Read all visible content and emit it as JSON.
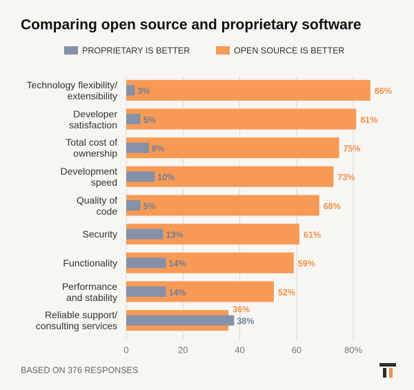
{
  "chart_data": {
    "type": "hbar",
    "title": "Comparing open source and proprietary software",
    "categories": [
      "Technology flexibility/\nextensibility",
      "Developer\nsatisfaction",
      "Total cost of\nownership",
      "Development\nspeed",
      "Quality of\ncode",
      "Security",
      "Functionality",
      "Performance\nand stability",
      "Reliable support/\nconsulting services"
    ],
    "series": [
      {
        "name": "PROPRIETARY IS BETTER",
        "color": "#8491a8",
        "label_color": "#6f7d96",
        "values": [
          3,
          5,
          8,
          10,
          5,
          13,
          14,
          14,
          38
        ],
        "value_labels": [
          "3%",
          "5%",
          "8%",
          "10%",
          "5%",
          "13%",
          "14%",
          "14%",
          "38%"
        ]
      },
      {
        "name": "OPEN SOURCE IS BETTER",
        "color": "#f79a55",
        "label_color": "#f0914a",
        "values": [
          86,
          81,
          75,
          73,
          68,
          61,
          59,
          52,
          36
        ],
        "value_labels": [
          "86%",
          "81%",
          "75%",
          "73%",
          "68%",
          "61%",
          "59%",
          "52%",
          "36%"
        ]
      }
    ],
    "xlim": [
      0,
      88
    ],
    "xticks": [
      0,
      20,
      40,
      60,
      {
        "value": 80,
        "label": "80%"
      }
    ],
    "grid": true,
    "footnote": "BASED ON 376 RESPONSES"
  }
}
